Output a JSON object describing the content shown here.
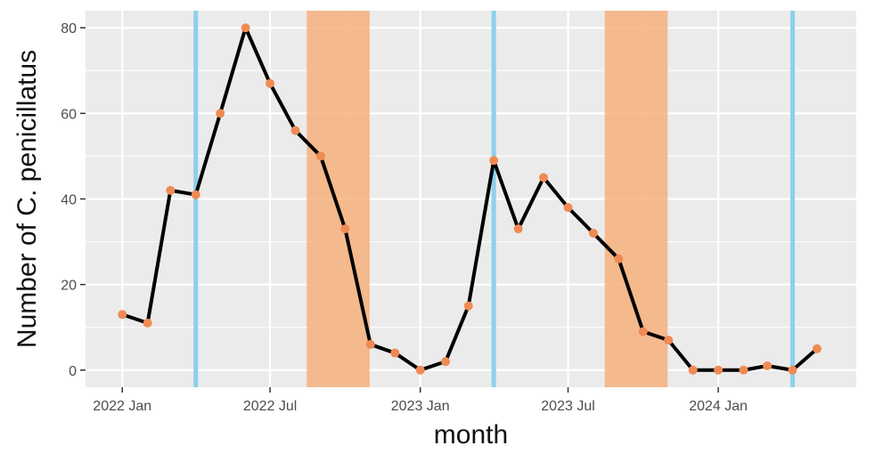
{
  "chart_data": {
    "type": "line",
    "title": "",
    "xlabel": "month",
    "ylabel": "Number of C. penicillatus",
    "ylim": [
      -4,
      84
    ],
    "xlim": [
      "2021-11-17",
      "2024-06-18"
    ],
    "y_ticks": [
      0,
      20,
      40,
      60,
      80
    ],
    "x_ticks": [
      {
        "date": "2022-01-01",
        "label": "2022 Jan"
      },
      {
        "date": "2022-07-01",
        "label": "2022 Jul"
      },
      {
        "date": "2023-01-01",
        "label": "2023 Jan"
      },
      {
        "date": "2023-07-01",
        "label": "2023 Jul"
      },
      {
        "date": "2024-01-01",
        "label": "2024 Jan"
      }
    ],
    "grid": true,
    "series": [
      {
        "x": [
          "2022-01-01",
          "2022-02-01",
          "2022-03-01",
          "2022-04-01",
          "2022-05-01",
          "2022-06-01",
          "2022-07-01",
          "2022-08-01",
          "2022-09-01",
          "2022-10-01",
          "2022-11-01",
          "2022-12-01",
          "2023-01-01",
          "2023-02-01",
          "2023-03-01",
          "2023-04-01",
          "2023-05-01",
          "2023-06-01",
          "2023-07-01",
          "2023-08-01",
          "2023-09-01",
          "2023-10-01",
          "2023-11-01",
          "2023-12-01",
          "2024-01-01",
          "2024-02-01",
          "2024-03-01",
          "2024-04-01",
          "2024-05-01"
        ],
        "y": [
          13,
          11,
          42,
          41,
          60,
          80,
          67,
          56,
          50,
          33,
          6,
          4,
          0,
          2,
          15,
          49,
          33,
          45,
          38,
          32,
          26,
          9,
          7,
          0,
          0,
          0,
          1,
          0,
          5
        ]
      }
    ],
    "vertical_lines": [
      "2022-04-01",
      "2023-04-01",
      "2024-04-01"
    ],
    "shaded_periods": [
      {
        "start": "2022-08-15",
        "end": "2022-10-31"
      },
      {
        "start": "2023-08-15",
        "end": "2023-10-31"
      }
    ],
    "colors": {
      "panel_background": "#ebebeb",
      "gridline": "#ffffff",
      "line": "#000000",
      "point": "#f08a54",
      "vertical_line": "#8ecfee",
      "shade": "#f6b07c"
    }
  }
}
